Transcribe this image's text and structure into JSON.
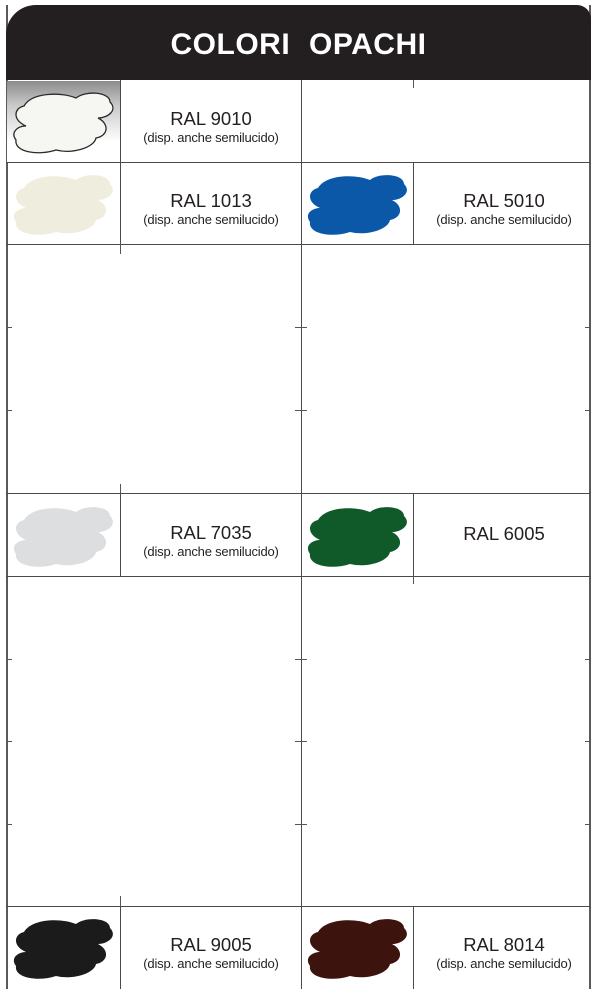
{
  "title": "COLORI  OPACHI",
  "colors": [
    {
      "code": "RAL 9010",
      "note": "(disp. anche semilucido)",
      "hex": "#f6f6f3"
    },
    {
      "code": "RAL 1013",
      "note": "(disp. anche semilucido)",
      "hex": "#efeede"
    },
    {
      "code": "RAL 5010",
      "note": "(disp. anche semilucido)",
      "hex": "#0b58a8"
    },
    {
      "code": "RAL 7035",
      "note": "(disp. anche semilucido)",
      "hex": "#dcdedf"
    },
    {
      "code": "RAL 6005",
      "note": "",
      "hex": "#0f5a28"
    },
    {
      "code": "RAL 9005",
      "note": "(disp. anche semilucido)",
      "hex": "#1b1b1b"
    },
    {
      "code": "RAL 8014",
      "note": "(disp. anche semilucido)",
      "hex": "#3c130d"
    }
  ]
}
